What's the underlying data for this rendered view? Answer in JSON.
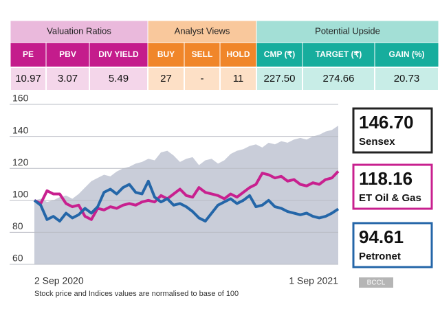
{
  "table": {
    "groups": [
      {
        "title": "Valuation Ratios",
        "head_color": "#eab9dc",
        "sub_color": "#c41c8c",
        "cell_color": "#f4d6ea",
        "columns": [
          "PE",
          "PBV",
          "DIV YIELD"
        ],
        "values": [
          "10.97",
          "3.07",
          "5.49"
        ]
      },
      {
        "title": "Analyst Views",
        "head_color": "#f9c89c",
        "sub_color": "#f0862a",
        "cell_color": "#fde0c6",
        "columns": [
          "BUY",
          "SELL",
          "HOLD"
        ],
        "values": [
          "27",
          "-",
          "11"
        ]
      },
      {
        "title": "Potential Upside",
        "head_color": "#a3dfd6",
        "sub_color": "#17ad9d",
        "cell_color": "#c8ede7",
        "columns": [
          "CMP (₹)",
          "TARGET (₹)",
          "GAIN (%)"
        ],
        "values": [
          "227.50",
          "274.66",
          "20.73"
        ]
      }
    ]
  },
  "chart_data": {
    "type": "line",
    "categories": [
      "2 Sep 2020",
      null,
      null,
      null,
      null,
      null,
      null,
      null,
      null,
      null,
      null,
      null,
      null,
      null,
      null,
      null,
      null,
      null,
      null,
      null,
      null,
      null,
      null,
      null,
      null,
      null,
      null,
      null,
      null,
      null,
      null,
      null,
      null,
      null,
      null,
      null,
      null,
      null,
      null,
      null,
      null,
      null,
      null,
      null,
      null,
      null,
      null,
      null,
      "1 Sep 2021"
    ],
    "series": [
      {
        "name": "Sensex",
        "latest": "146.70",
        "color": "#c9cdd9",
        "area": true,
        "values": [
          100,
          101,
          99,
          100,
          102,
          103,
          101,
          104,
          108,
          112,
          114,
          116,
          115,
          118,
          120,
          121,
          123,
          124,
          126,
          125,
          130,
          131,
          128,
          124,
          126,
          127,
          122,
          125,
          126,
          123,
          125,
          129,
          131,
          132,
          134,
          135,
          133,
          136,
          135,
          137,
          136,
          138,
          139,
          138,
          140,
          141,
          143,
          144,
          146.7
        ]
      },
      {
        "name": "ET Oil & Gas",
        "latest": "118.16",
        "color": "#c8208f",
        "area": false,
        "values": [
          100,
          98,
          106,
          104,
          104,
          98,
          96,
          97,
          90,
          88,
          95,
          94,
          96,
          95,
          97,
          98,
          97,
          99,
          100,
          99,
          103,
          101,
          104,
          107,
          103,
          102,
          108,
          105,
          104,
          103,
          101,
          104,
          102,
          105,
          108,
          110,
          117,
          116,
          114,
          115,
          112,
          113,
          110,
          109,
          111,
          110,
          113,
          114,
          118.16
        ]
      },
      {
        "name": "Petronet",
        "latest": "94.61",
        "color": "#2466a8",
        "area": false,
        "values": [
          100,
          97,
          88,
          90,
          87,
          92,
          89,
          91,
          95,
          92,
          96,
          105,
          107,
          104,
          108,
          110,
          105,
          104,
          112,
          102,
          99,
          101,
          97,
          98,
          96,
          93,
          89,
          87,
          92,
          97,
          99,
          101,
          98,
          100,
          103,
          96,
          97,
          100,
          96,
          95,
          93,
          92,
          91,
          92,
          90,
          89,
          90,
          92,
          94.61
        ]
      }
    ],
    "ylim": [
      60,
      160
    ],
    "yticks": [
      60,
      80,
      100,
      120,
      140,
      160
    ],
    "grid": true,
    "note": "Stock price and Indices values are normalised to base of 100",
    "source": "BCCL"
  }
}
